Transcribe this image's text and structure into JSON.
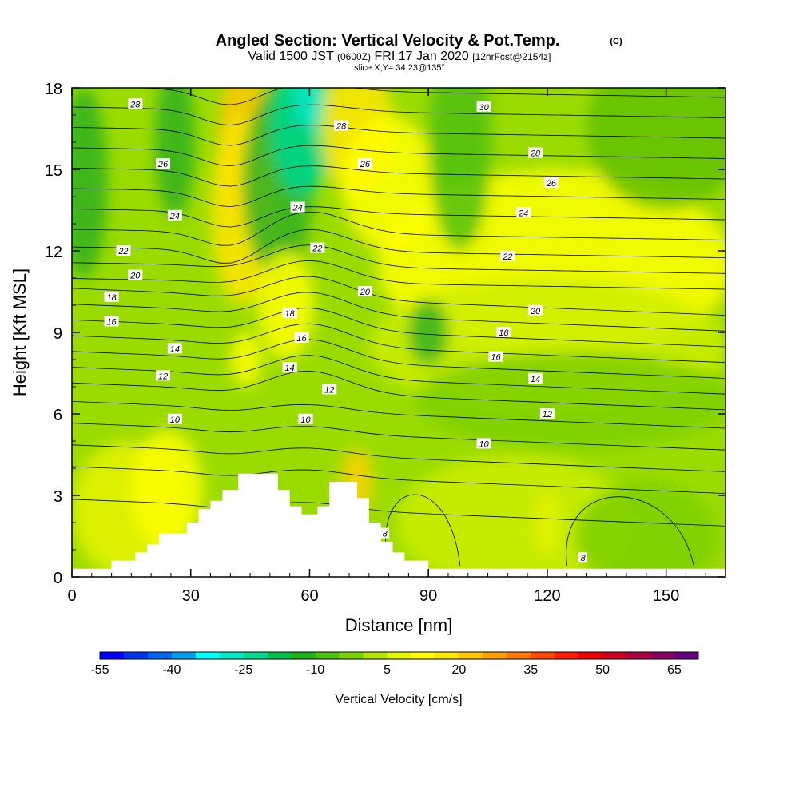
{
  "title": {
    "main": "Angled Section: Vertical Velocity & Pot.Temp.",
    "main_unit": "(C)",
    "valid_a": "Valid 1500 JST",
    "valid_b": "(0600Z)",
    "valid_c": "FRI 17 Jan 2020",
    "valid_d": "[12hrFcst@2154z]",
    "slice": "slice X,Y= 34,23@135°"
  },
  "chart_data": {
    "type": "heatmap",
    "title": "Angled Section: Vertical Velocity & Pot.Temp. (C)",
    "xlabel": "Distance [nm]",
    "ylabel": "Height [Kft MSL]",
    "xlim": [
      0,
      165
    ],
    "ylim": [
      0,
      18
    ],
    "x_ticks": [
      0,
      30,
      60,
      90,
      120,
      150
    ],
    "y_ticks": [
      0,
      3,
      6,
      9,
      12,
      15,
      18
    ],
    "colorbar": {
      "label": "Vertical Velocity [cm/s]",
      "tick_labels": [
        "-55",
        "-40",
        "-25",
        "-10",
        "5",
        "20",
        "35",
        "50",
        "65"
      ],
      "min": -55,
      "max": 70,
      "step": 5,
      "colors": [
        "#0000ff",
        "#0033ee",
        "#0066ee",
        "#00a0ee",
        "#00ffff",
        "#00e8c8",
        "#00d890",
        "#00c050",
        "#20b020",
        "#50c010",
        "#7dd000",
        "#b4e600",
        "#e6f500",
        "#ffff00",
        "#ffe600",
        "#ffc800",
        "#ffa000",
        "#ff7800",
        "#ff4b00",
        "#ff1e00",
        "#ee0000",
        "#cc0020",
        "#aa0040",
        "#880060",
        "#660080"
      ]
    },
    "terrain_kft": [
      {
        "x": 0,
        "h": 0.3
      },
      {
        "x": 10,
        "h": 0.3
      },
      {
        "x": 10,
        "h": 0.6
      },
      {
        "x": 16,
        "h": 0.6
      },
      {
        "x": 16,
        "h": 0.9
      },
      {
        "x": 19,
        "h": 0.9
      },
      {
        "x": 19,
        "h": 1.2
      },
      {
        "x": 22,
        "h": 1.2
      },
      {
        "x": 22,
        "h": 1.6
      },
      {
        "x": 29,
        "h": 1.6
      },
      {
        "x": 29,
        "h": 2.0
      },
      {
        "x": 32,
        "h": 2.0
      },
      {
        "x": 32,
        "h": 2.5
      },
      {
        "x": 35,
        "h": 2.5
      },
      {
        "x": 35,
        "h": 2.8
      },
      {
        "x": 38,
        "h": 2.8
      },
      {
        "x": 38,
        "h": 3.2
      },
      {
        "x": 42,
        "h": 3.2
      },
      {
        "x": 42,
        "h": 3.8
      },
      {
        "x": 52,
        "h": 3.8
      },
      {
        "x": 52,
        "h": 3.2
      },
      {
        "x": 55,
        "h": 3.2
      },
      {
        "x": 55,
        "h": 2.6
      },
      {
        "x": 58,
        "h": 2.6
      },
      {
        "x": 58,
        "h": 2.3
      },
      {
        "x": 62,
        "h": 2.3
      },
      {
        "x": 62,
        "h": 2.6
      },
      {
        "x": 65,
        "h": 2.6
      },
      {
        "x": 65,
        "h": 3.5
      },
      {
        "x": 72,
        "h": 3.5
      },
      {
        "x": 72,
        "h": 2.9
      },
      {
        "x": 75,
        "h": 2.9
      },
      {
        "x": 75,
        "h": 2.0
      },
      {
        "x": 78,
        "h": 2.0
      },
      {
        "x": 78,
        "h": 1.3
      },
      {
        "x": 81,
        "h": 1.3
      },
      {
        "x": 81,
        "h": 0.9
      },
      {
        "x": 84,
        "h": 0.9
      },
      {
        "x": 84,
        "h": 0.6
      },
      {
        "x": 90,
        "h": 0.6
      },
      {
        "x": 90,
        "h": 0.3
      },
      {
        "x": 165,
        "h": 0.3
      }
    ],
    "theta_contour_labels": [
      {
        "v": "28",
        "x": 16,
        "y": 17.4
      },
      {
        "v": "28",
        "x": 68,
        "y": 16.6
      },
      {
        "v": "30",
        "x": 104,
        "y": 17.3
      },
      {
        "v": "28",
        "x": 117,
        "y": 15.6
      },
      {
        "v": "26",
        "x": 23,
        "y": 15.2
      },
      {
        "v": "26",
        "x": 74,
        "y": 15.2
      },
      {
        "v": "26",
        "x": 121,
        "y": 14.5
      },
      {
        "v": "24",
        "x": 26,
        "y": 13.3
      },
      {
        "v": "24",
        "x": 57,
        "y": 13.6
      },
      {
        "v": "24",
        "x": 114,
        "y": 13.4
      },
      {
        "v": "22",
        "x": 13,
        "y": 12.0
      },
      {
        "v": "22",
        "x": 62,
        "y": 12.1
      },
      {
        "v": "22",
        "x": 110,
        "y": 11.8
      },
      {
        "v": "20",
        "x": 16,
        "y": 11.1
      },
      {
        "v": "20",
        "x": 74,
        "y": 10.5
      },
      {
        "v": "20",
        "x": 117,
        "y": 9.8
      },
      {
        "v": "18",
        "x": 10,
        "y": 10.3
      },
      {
        "v": "18",
        "x": 55,
        "y": 9.7
      },
      {
        "v": "18",
        "x": 109,
        "y": 9.0
      },
      {
        "v": "16",
        "x": 10,
        "y": 9.4
      },
      {
        "v": "16",
        "x": 58,
        "y": 8.8
      },
      {
        "v": "16",
        "x": 107,
        "y": 8.1
      },
      {
        "v": "14",
        "x": 26,
        "y": 8.4
      },
      {
        "v": "14",
        "x": 55,
        "y": 7.7
      },
      {
        "v": "14",
        "x": 117,
        "y": 7.3
      },
      {
        "v": "12",
        "x": 23,
        "y": 7.4
      },
      {
        "v": "12",
        "x": 65,
        "y": 6.9
      },
      {
        "v": "12",
        "x": 120,
        "y": 6.0
      },
      {
        "v": "10",
        "x": 26,
        "y": 5.8
      },
      {
        "v": "10",
        "x": 59,
        "y": 5.8
      },
      {
        "v": "10",
        "x": 104,
        "y": 4.9
      },
      {
        "v": "8",
        "x": 79,
        "y": 1.6
      },
      {
        "v": "8",
        "x": 129,
        "y": 0.7
      }
    ]
  }
}
